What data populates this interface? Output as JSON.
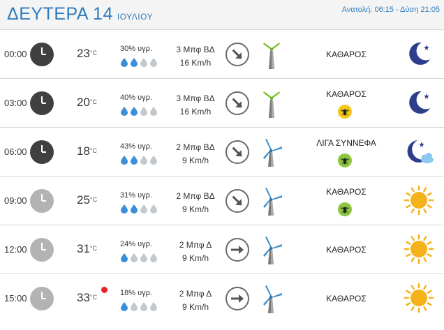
{
  "header": {
    "day": "ΔΕΥΤΕΡΑ 14",
    "month": "ΙΟΥΛΙΟΥ",
    "sun_times": "Ανατολή: 06:15 - Δύση 21:05"
  },
  "rows": [
    {
      "time": "00:00",
      "temp": "23",
      "unit": "°C",
      "humidity": "30% υγρ.",
      "drops_filled": 2,
      "wind_line1": "3 Μπφ ΒΔ",
      "wind_line2": "16 Km/h",
      "wind_direction": "ΒΔ",
      "sky": "ΚΑΘΑΡΟΣ",
      "turbine": "green-turbine-icon",
      "insect": false,
      "icon": "moon-icon",
      "clock": "dark",
      "hot": false
    },
    {
      "time": "03:00",
      "temp": "20",
      "unit": "°C",
      "humidity": "40% υγρ.",
      "drops_filled": 2,
      "wind_line1": "3 Μπφ ΒΔ",
      "wind_line2": "16 Km/h",
      "wind_direction": "ΒΔ",
      "sky": "ΚΑΘΑΡΟΣ",
      "turbine": "green-turbine-icon",
      "insect": "yellow",
      "icon": "moon-icon",
      "clock": "dark",
      "hot": false
    },
    {
      "time": "06:00",
      "temp": "18",
      "unit": "°C",
      "humidity": "43% υγρ.",
      "drops_filled": 2,
      "wind_line1": "2 Μπφ ΒΔ",
      "wind_line2": "9 Km/h",
      "wind_direction": "ΒΔ",
      "sky": "ΛΙΓΑ ΣΥΝΝΕΦΑ",
      "turbine": "blue-turbine-icon",
      "insect": "green",
      "icon": "moon-cloud-icon",
      "clock": "dark",
      "hot": false
    },
    {
      "time": "09:00",
      "temp": "25",
      "unit": "°C",
      "humidity": "31% υγρ.",
      "drops_filled": 2,
      "wind_line1": "2 Μπφ ΒΔ",
      "wind_line2": "9 Km/h",
      "wind_direction": "ΒΔ",
      "sky": "ΚΑΘΑΡΟΣ",
      "turbine": "blue-turbine-icon",
      "insect": "green",
      "icon": "sun-icon",
      "clock": "light",
      "hot": false
    },
    {
      "time": "12:00",
      "temp": "31",
      "unit": "°C",
      "humidity": "24% υγρ.",
      "drops_filled": 1,
      "wind_line1": "2 Μπφ Δ",
      "wind_line2": "9 Km/h",
      "wind_direction": "Δ",
      "sky": "ΚΑΘΑΡΟΣ",
      "turbine": "blue-turbine-icon",
      "insect": false,
      "icon": "sun-icon",
      "clock": "light",
      "hot": false
    },
    {
      "time": "15:00",
      "temp": "33",
      "unit": "°C",
      "humidity": "18% υγρ.",
      "drops_filled": 1,
      "wind_line1": "2 Μπφ Δ",
      "wind_line2": "9 Km/h",
      "wind_direction": "Δ",
      "sky": "ΚΑΘΑΡΟΣ",
      "turbine": "blue-turbine-icon",
      "insect": false,
      "icon": "sun-icon",
      "clock": "light",
      "hot": true
    }
  ],
  "colors": {
    "accent": "#2f7bbf",
    "clock_dark": "#404040",
    "clock_light": "#b3b3b3",
    "drop_filled": "#3b8fd8",
    "drop_empty": "#c3c8cc",
    "moon": "#2d3e8c",
    "sun": "#f5b21a",
    "hot_dot": "#e8232a",
    "insect_yellow": "#f3c61a",
    "insect_green": "#8cc63e"
  }
}
